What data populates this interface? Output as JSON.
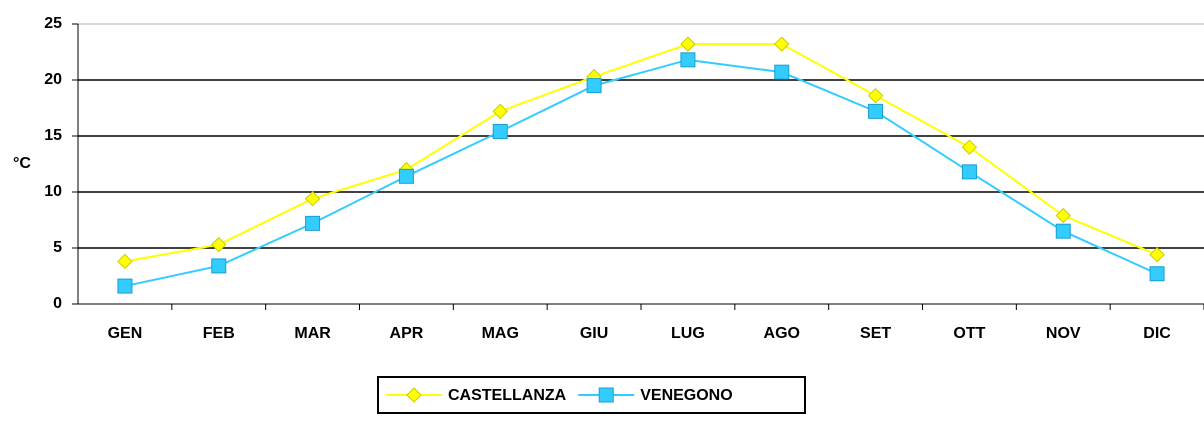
{
  "chart_data": {
    "type": "line",
    "y_label": "°C",
    "categories": [
      "GEN",
      "FEB",
      "MAR",
      "APR",
      "MAG",
      "GIU",
      "LUG",
      "AGO",
      "SET",
      "OTT",
      "NOV",
      "DIC"
    ],
    "series": [
      {
        "name": "CASTELLANZA",
        "color": "#ffff00",
        "marker": "diamond",
        "values": [
          3.8,
          5.3,
          9.4,
          12.0,
          17.2,
          20.3,
          23.2,
          23.2,
          18.6,
          14.0,
          7.9,
          4.4
        ]
      },
      {
        "name": "VENEGONO",
        "color": "#33ccff",
        "marker": "square",
        "values": [
          1.6,
          3.4,
          7.2,
          11.4,
          15.4,
          19.5,
          21.8,
          20.7,
          17.2,
          11.8,
          6.5,
          2.7
        ]
      }
    ],
    "ylim": [
      0,
      25
    ],
    "yticks": [
      0,
      5,
      10,
      15,
      20,
      25
    ],
    "grid": true,
    "legend": "bottom"
  }
}
